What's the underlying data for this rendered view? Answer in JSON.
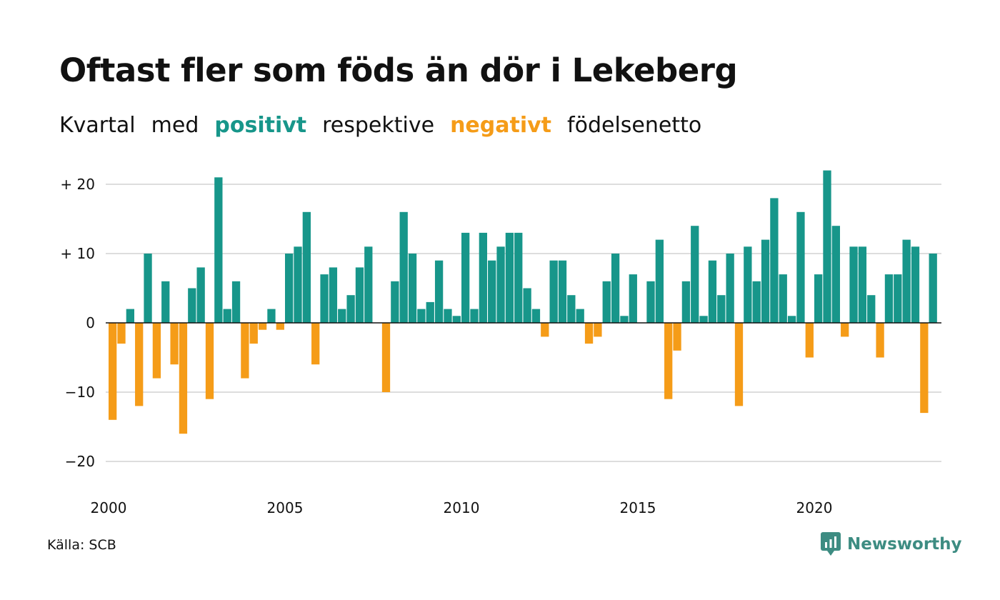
{
  "header": {
    "title": "Oftast fler som föds än dör i Lekeberg",
    "subtitle": {
      "part1": "Kvartal",
      "part2": "med",
      "positive": "positivt",
      "part3": "respektive",
      "negative": "negativt",
      "part4": "födelsenetto"
    }
  },
  "footer": {
    "source": "Källa: SCB",
    "brand": "Newsworthy"
  },
  "colors": {
    "positive": "#17968a",
    "negative": "#f59c18",
    "grid": "#dddddd",
    "brand": "#3d8c82"
  },
  "chart_data": {
    "type": "bar",
    "title": "Oftast fler som föds än dör i Lekeberg",
    "subtitle": "Kvartal med positivt respektive negativt födelsenetto",
    "xlabel": "",
    "ylabel": "",
    "x_start": "2000 Q1",
    "x_tick_labels": [
      "2000",
      "2005",
      "2010",
      "2015",
      "2020"
    ],
    "y_tick_values": [
      20,
      10,
      0,
      -10,
      -20
    ],
    "y_tick_labels": [
      "+ 20",
      "+ 10",
      "0",
      "−10",
      "−20"
    ],
    "ylim": [
      -22,
      22
    ],
    "grid": true,
    "legend": "none (colors explained in subtitle)",
    "values": [
      -14,
      -3,
      2,
      -12,
      10,
      -8,
      6,
      -6,
      -16,
      5,
      8,
      -11,
      21,
      2,
      6,
      -8,
      -3,
      -1,
      2,
      -1,
      10,
      11,
      16,
      -6,
      7,
      8,
      2,
      4,
      8,
      11,
      0,
      -10,
      6,
      16,
      10,
      2,
      3,
      9,
      2,
      1,
      13,
      2,
      13,
      9,
      11,
      13,
      13,
      5,
      2,
      -2,
      9,
      9,
      4,
      2,
      -3,
      -2,
      6,
      10,
      1,
      7,
      0,
      6,
      12,
      -11,
      -4,
      6,
      14,
      1,
      9,
      4,
      10,
      -12,
      11,
      6,
      12,
      18,
      7,
      1,
      16,
      -5,
      7,
      22,
      14,
      -2,
      11,
      11,
      4,
      -5,
      7,
      7,
      12,
      11,
      -13,
      10
    ]
  }
}
